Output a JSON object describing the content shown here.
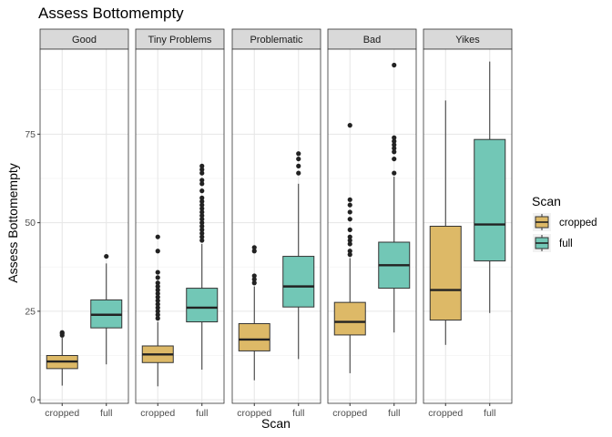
{
  "chart_data": {
    "type": "boxplot",
    "title": "Assess Bottomempty",
    "xlabel": "Scan",
    "ylabel": "Assess Bottomempty",
    "ylim": [
      -1,
      99
    ],
    "yticks": [
      0,
      25,
      50,
      75
    ],
    "grid": true,
    "legend": {
      "title": "Scan",
      "position": "right",
      "entries": [
        {
          "label": "cropped",
          "color": "#DDB967"
        },
        {
          "label": "full",
          "color": "#72C7B6"
        }
      ]
    },
    "facets": [
      {
        "label": "Good",
        "boxes": [
          {
            "group": "cropped",
            "min": 4,
            "q1": 8.8,
            "median": 10.8,
            "q3": 12.5,
            "max": 17.5,
            "outliers": [
              18.2,
              18.7,
              19.0
            ]
          },
          {
            "group": "full",
            "min": 10,
            "q1": 20.3,
            "median": 24,
            "q3": 28.2,
            "max": 38.5,
            "outliers": [
              40.5
            ]
          }
        ]
      },
      {
        "label": "Tiny Problems",
        "boxes": [
          {
            "group": "cropped",
            "min": 3.8,
            "q1": 10.5,
            "median": 12.8,
            "q3": 15.2,
            "max": 22,
            "outliers": [
              23,
              24,
              25,
              26,
              27,
              28,
              29,
              30,
              31,
              32,
              33,
              34.5,
              36,
              42,
              46
            ]
          },
          {
            "group": "full",
            "min": 8.5,
            "q1": 22,
            "median": 26,
            "q3": 31.5,
            "max": 44,
            "outliers": [
              45,
              46,
              47,
              48,
              49,
              50,
              51,
              52,
              53,
              54,
              55,
              56,
              57,
              59,
              61,
              62,
              64,
              65,
              66
            ]
          }
        ]
      },
      {
        "label": "Problematic",
        "boxes": [
          {
            "group": "cropped",
            "min": 5.5,
            "q1": 13.8,
            "median": 17,
            "q3": 21.5,
            "max": 32,
            "outliers": [
              33,
              34,
              35,
              42,
              43
            ]
          },
          {
            "group": "full",
            "min": 11.5,
            "q1": 26.2,
            "median": 32,
            "q3": 40.5,
            "max": 61,
            "outliers": [
              64,
              66,
              68,
              69.5
            ]
          }
        ]
      },
      {
        "label": "Bad",
        "boxes": [
          {
            "group": "cropped",
            "min": 7.5,
            "q1": 18.3,
            "median": 22,
            "q3": 27.5,
            "max": 40,
            "outliers": [
              41,
              42,
              44,
              45,
              46,
              48,
              51,
              53,
              55,
              56.5,
              77.5
            ]
          },
          {
            "group": "full",
            "min": 19,
            "q1": 31.5,
            "median": 38,
            "q3": 44.5,
            "max": 63,
            "outliers": [
              64,
              68,
              70,
              71,
              72,
              73,
              74,
              94.5
            ]
          }
        ]
      },
      {
        "label": "Yikes",
        "boxes": [
          {
            "group": "cropped",
            "min": 15.5,
            "q1": 22.5,
            "median": 31,
            "q3": 49,
            "max": 84.5,
            "outliers": []
          },
          {
            "group": "full",
            "min": 24.5,
            "q1": 39.2,
            "median": 49.5,
            "q3": 73.5,
            "max": 95.5,
            "outliers": []
          }
        ]
      }
    ]
  }
}
